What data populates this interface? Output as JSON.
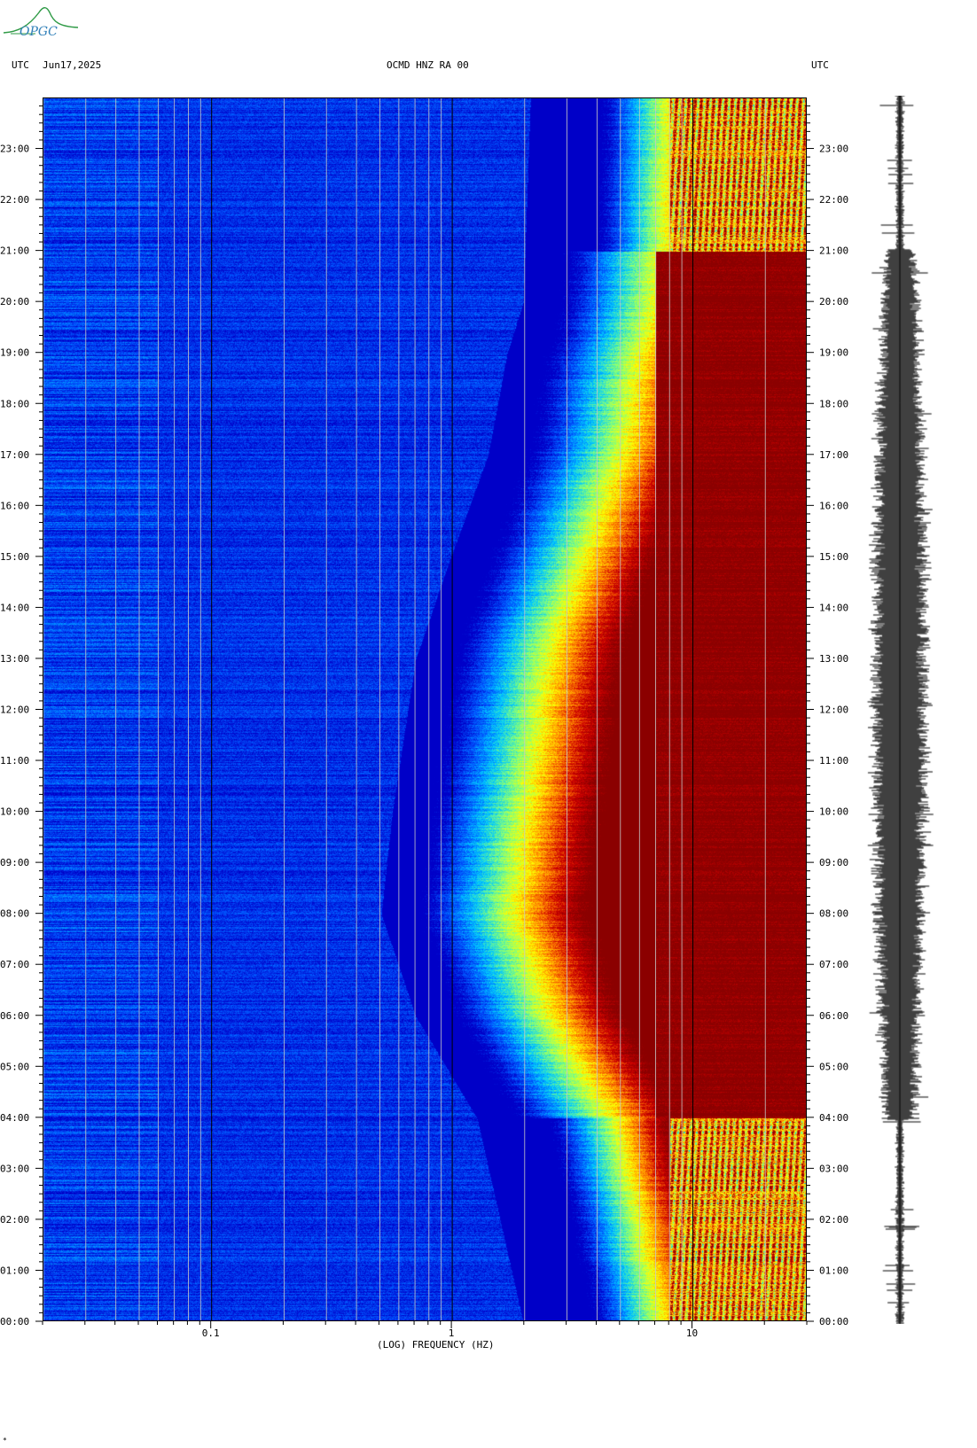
{
  "header": {
    "left_utc": "UTC",
    "date": "Jun17,2025",
    "station": "OCMD HNZ RA 00",
    "right_utc": "UTC"
  },
  "logo": {
    "text": "OPGC",
    "color": "#2f7fb8"
  },
  "chart_data": {
    "type": "heatmap",
    "title": "OCMD HNZ RA 00",
    "xlabel": "(LOG) FREQUENCY (HZ)",
    "x_scale": "log",
    "xlim": [
      0.02,
      30
    ],
    "x_ticks": [
      {
        "value": 0.1,
        "label": "0.1"
      },
      {
        "value": 1,
        "label": "1"
      },
      {
        "value": 10,
        "label": "10"
      }
    ],
    "ylabel": "UTC",
    "ylim_hours": [
      0,
      24
    ],
    "y_ticks": [
      "00:00",
      "01:00",
      "02:00",
      "03:00",
      "04:00",
      "05:00",
      "06:00",
      "07:00",
      "08:00",
      "09:00",
      "10:00",
      "11:00",
      "12:00",
      "13:00",
      "14:00",
      "15:00",
      "16:00",
      "17:00",
      "18:00",
      "19:00",
      "20:00",
      "21:00",
      "22:00",
      "23:00"
    ],
    "colormap": [
      "#0000c8",
      "#0055ff",
      "#00c8ff",
      "#7fff7f",
      "#ffff00",
      "#ff8000",
      "#cc0000",
      "#8b0000"
    ],
    "noise_edge_hz_by_hour": [
      {
        "hour": 0,
        "hz": 7
      },
      {
        "hour": 4,
        "hz": 4.5
      },
      {
        "hour": 6,
        "hz": 2.5
      },
      {
        "hour": 8,
        "hz": 1.8
      },
      {
        "hour": 10,
        "hz": 2
      },
      {
        "hour": 13,
        "hz": 2.5
      },
      {
        "hour": 15,
        "hz": 3.5
      },
      {
        "hour": 17,
        "hz": 5
      },
      {
        "hour": 19,
        "hz": 6
      },
      {
        "hour": 20,
        "hz": 7
      },
      {
        "hour": 24,
        "hz": 7.5
      }
    ],
    "saturated_above_hz_active_hours": 7,
    "active_period_hours": [
      4,
      21
    ]
  },
  "trace": {
    "type": "seismogram",
    "active_period_hours": [
      4,
      21
    ],
    "color": "#000000"
  },
  "footer": {
    "mark": "*"
  }
}
